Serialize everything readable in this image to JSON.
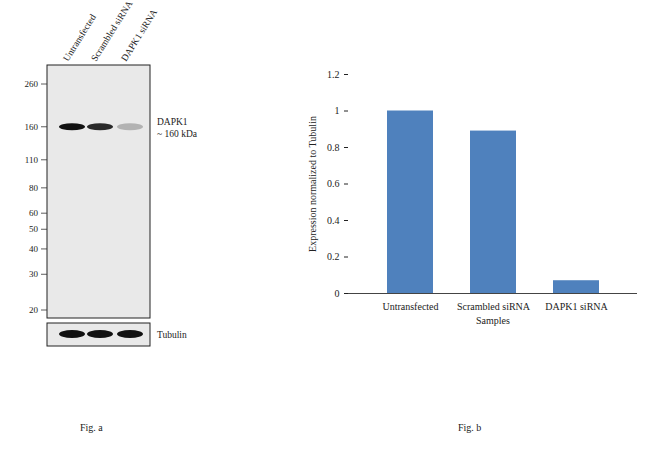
{
  "blot": {
    "lanes": [
      "Untransfected",
      "Scrambled siRNA",
      "DAPK1 siRNA"
    ],
    "markers": [
      260,
      160,
      110,
      80,
      60,
      50,
      40,
      30,
      20
    ],
    "band_label": "DAPK1",
    "band_size": "~ 160 kDa",
    "band_marker": 160,
    "control_label": "Tubulin",
    "caption": "Fig. a"
  },
  "chart_data": {
    "type": "bar",
    "categories": [
      "Untransfected",
      "Scrambled siRNA",
      "DAPK1 siRNA"
    ],
    "values": [
      1,
      0.89,
      0.07
    ],
    "color": "#4f81bd",
    "ylim": [
      0,
      1.2
    ],
    "yticks": [
      0,
      0.2,
      0.4,
      0.6,
      0.8,
      1,
      1.2
    ],
    "y_label": "Expression normalized to Tubulin",
    "x_label": "Samples",
    "caption": "Fig. b",
    "grid": false
  }
}
